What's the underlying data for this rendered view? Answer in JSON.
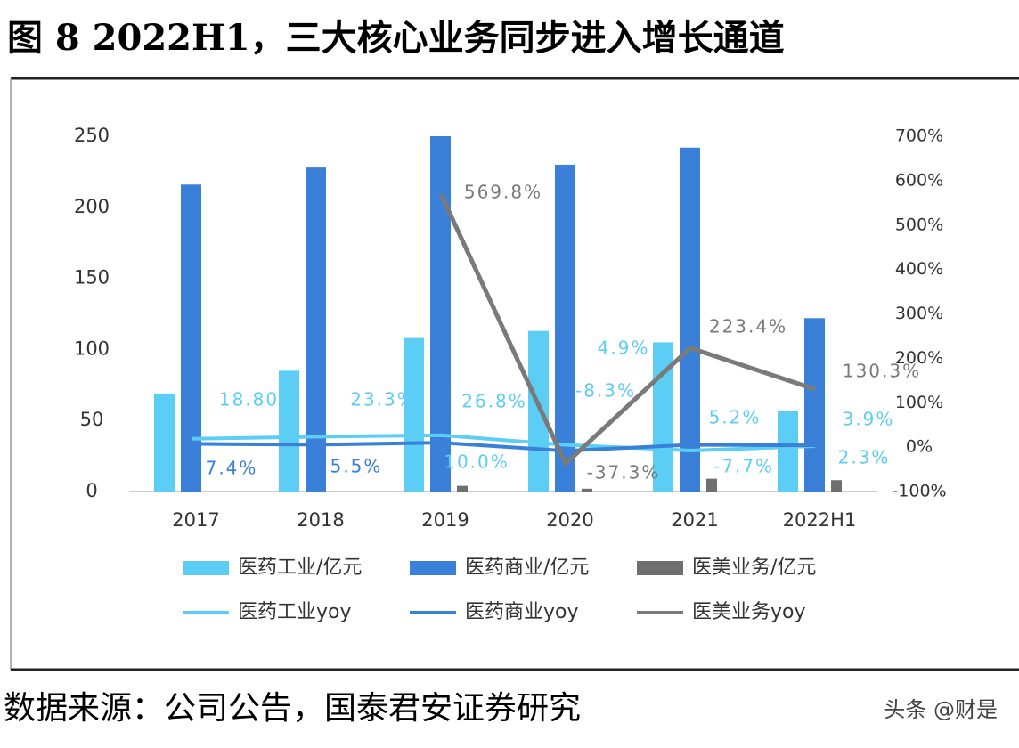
{
  "chart_data": {
    "type": "bar-line",
    "title": "图 8 2022H1，三大核心业务同步进入增长通道",
    "source": "数据来源：公司公告，国泰君安证券研究",
    "watermark": "头条 @财是",
    "categories": [
      "2017",
      "2018",
      "2019",
      "2020",
      "2021",
      "2022H1"
    ],
    "series": [
      {
        "name": "医药工业/亿元",
        "kind": "bar",
        "color": "#5ccdf5",
        "values": [
          69,
          85,
          108,
          113,
          105,
          57
        ]
      },
      {
        "name": "医药商业/亿元",
        "kind": "bar",
        "color": "#3a80d8",
        "values": [
          216,
          228,
          250,
          230,
          242,
          122
        ]
      },
      {
        "name": "医美业务/亿元",
        "kind": "bar",
        "color": "#6f6f6f",
        "values": [
          null,
          null,
          4,
          2,
          9,
          8
        ]
      },
      {
        "name": "医药工业yoy",
        "kind": "line",
        "axis": "y2",
        "color": "#5ccdf5",
        "values": [
          18.8,
          23.3,
          26.8,
          4.9,
          -7.7,
          2.3
        ],
        "value_labels": [
          "18.80%",
          "23.3%",
          "26.8%",
          "4.9%",
          "-7.7%",
          "2.3%"
        ]
      },
      {
        "name": "医药商业yoy",
        "kind": "line",
        "axis": "y2",
        "color": "#3a80d8",
        "values": [
          7.4,
          5.5,
          10.0,
          -8.3,
          5.2,
          3.9
        ],
        "value_labels": [
          "7.4%",
          "5.5%",
          "10.0%",
          "-8.3%",
          "5.2%",
          "3.9%"
        ]
      },
      {
        "name": "医美业务yoy",
        "kind": "line",
        "axis": "y2",
        "color": "#7a7a7a",
        "values": [
          null,
          null,
          569.8,
          -37.3,
          223.4,
          130.3
        ],
        "value_labels": [
          null,
          null,
          "569.8%",
          "-37.3%",
          "223.4%",
          "130.3%"
        ]
      }
    ],
    "ylim": [
      0,
      250
    ],
    "yticks": [
      0,
      50,
      100,
      150,
      200,
      250
    ],
    "y2lim": [
      -100,
      700
    ],
    "y2ticks": [
      {
        "value": -100,
        "label": "-100%"
      },
      {
        "value": 0,
        "label": "0%"
      },
      {
        "value": 100,
        "label": "100%"
      },
      {
        "value": 200,
        "label": "200%"
      },
      {
        "value": 300,
        "label": "300%"
      },
      {
        "value": 400,
        "label": "400%"
      },
      {
        "value": 500,
        "label": "500%"
      },
      {
        "value": 600,
        "label": "600%"
      },
      {
        "value": 700,
        "label": "700%"
      }
    ],
    "grid": false
  }
}
